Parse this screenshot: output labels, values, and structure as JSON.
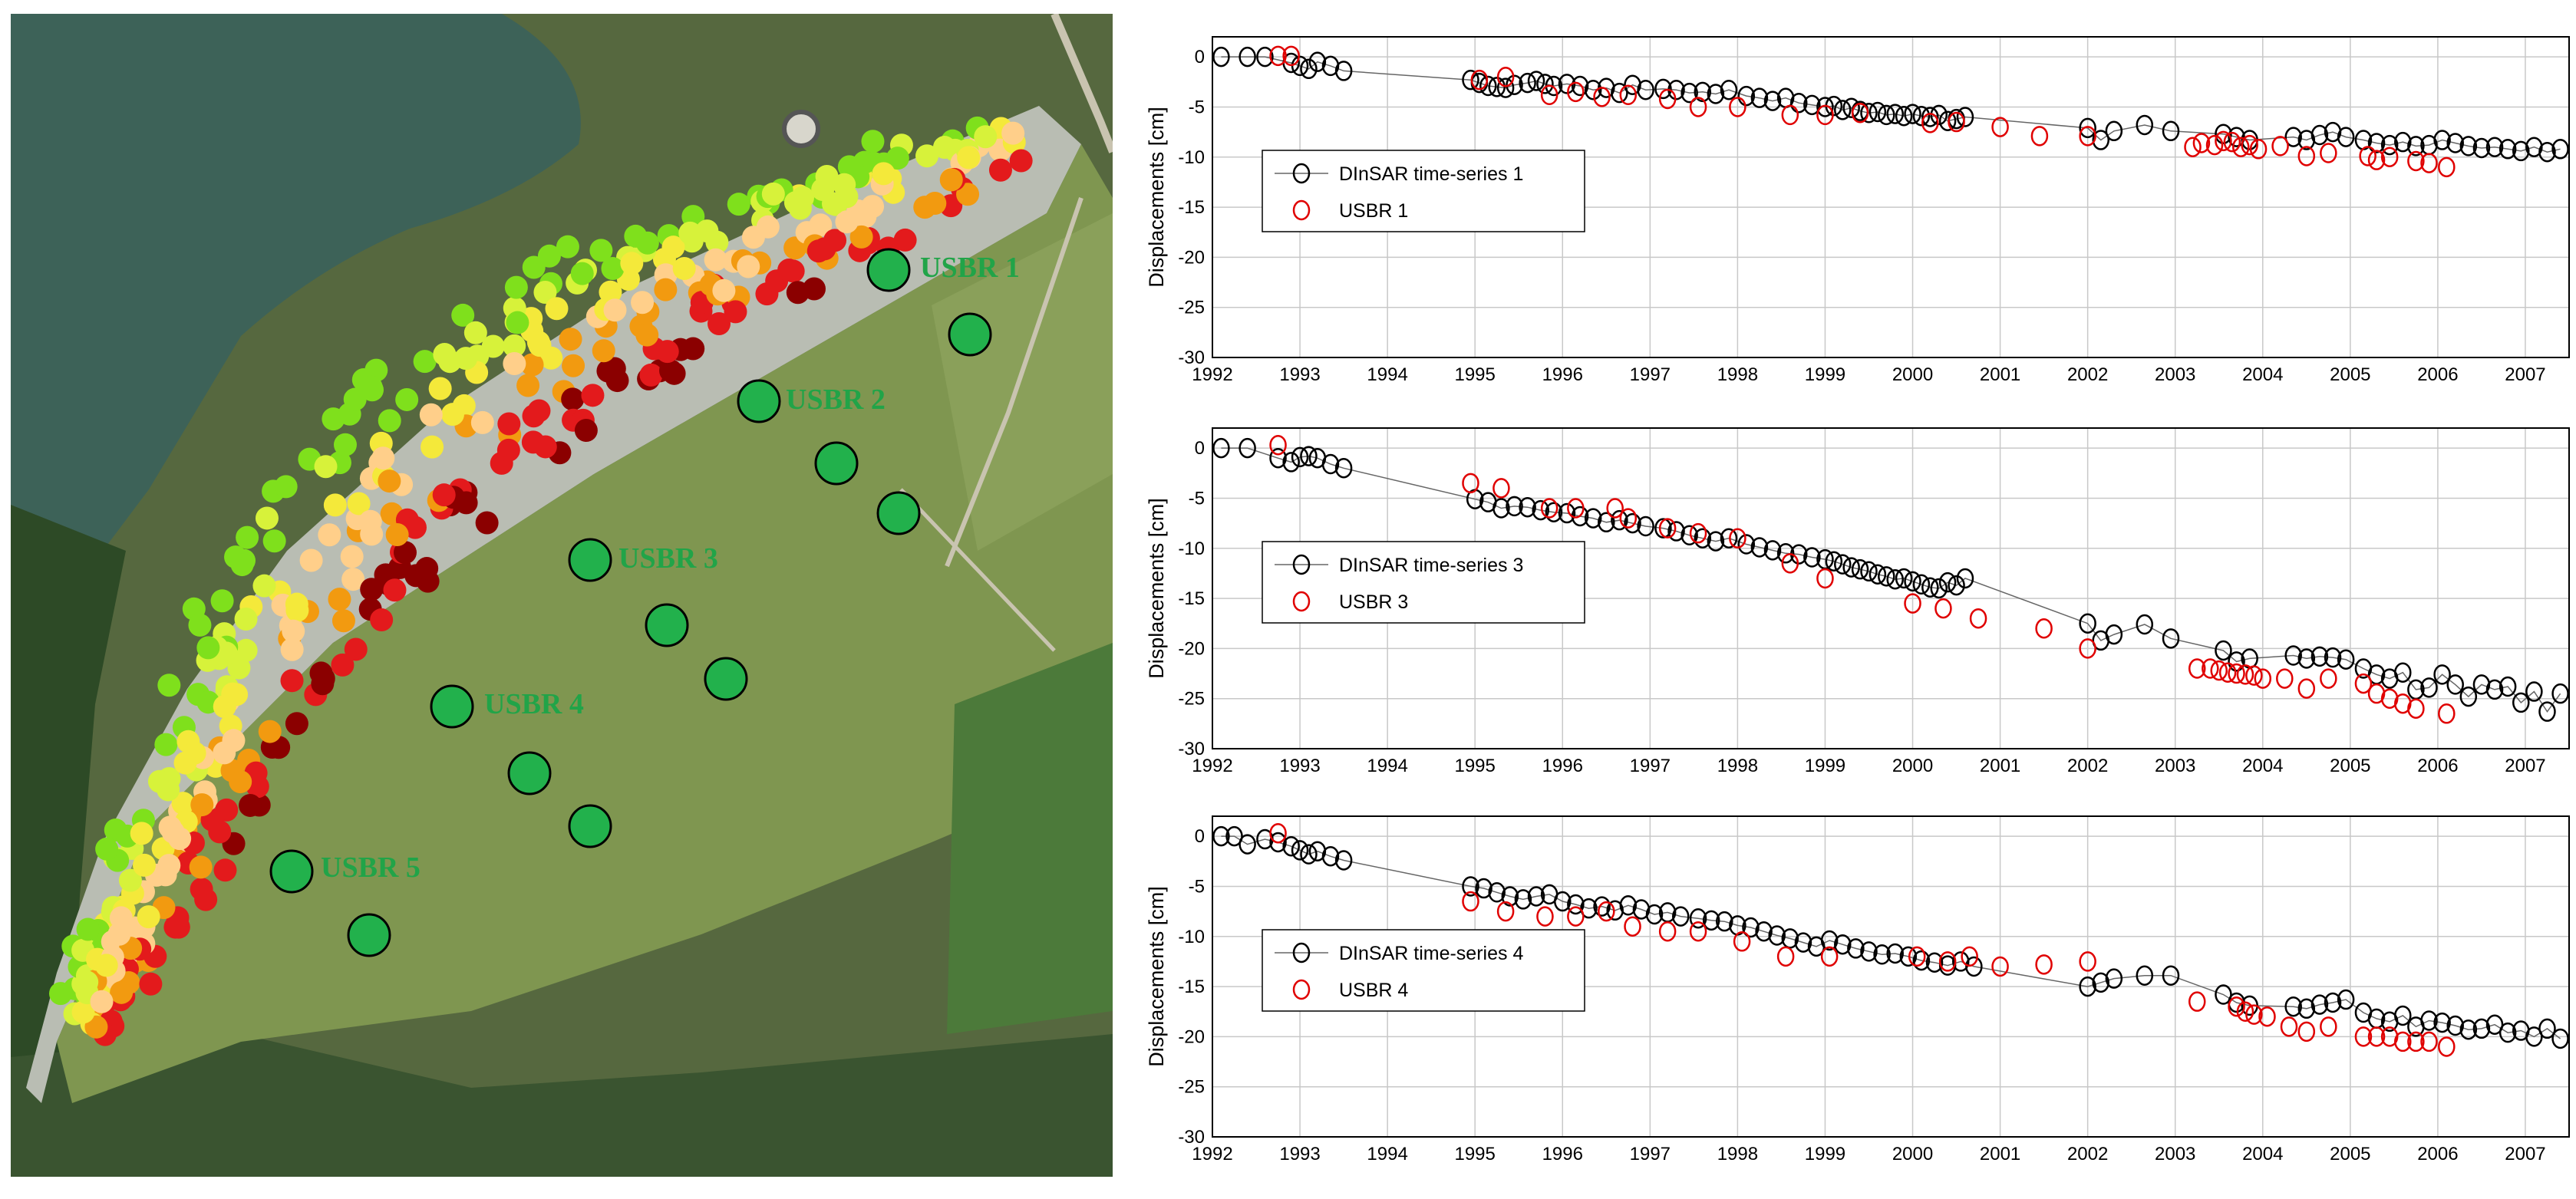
{
  "map": {
    "benchmark_labels": [
      "USBR 1",
      "USBR 2",
      "USBR 3",
      "USBR 4",
      "USBR 5"
    ],
    "benchmark_color": "#22b14c",
    "displacement_palette": [
      "#7fe01c",
      "#d7f23a",
      "#f4e93a",
      "#ffcf8a",
      "#f29a10",
      "#e31a1c",
      "#8b0000"
    ]
  },
  "chart_data": [
    {
      "type": "line",
      "ylabel": "Displacements [cm]",
      "xlim": [
        1992,
        2007.5
      ],
      "ylim": [
        -30,
        2
      ],
      "xticks": [
        "1992",
        "1993",
        "1994",
        "1995",
        "1996",
        "1997",
        "1998",
        "1999",
        "2000",
        "2001",
        "2002",
        "2003",
        "2004",
        "2005",
        "2006",
        "2007"
      ],
      "yticks": [
        "0",
        "-5",
        "-10",
        "-15",
        "-20",
        "-25",
        "-30"
      ],
      "grid": true,
      "legend_position": "middle-left",
      "series": [
        {
          "name": "DInSAR time-series 1",
          "color": "#000000",
          "marker": "circle",
          "line": true,
          "x": [
            1992.1,
            1992.4,
            1992.6,
            1992.9,
            1993.0,
            1993.1,
            1993.2,
            1993.35,
            1993.5,
            1994.95,
            1995.05,
            1995.15,
            1995.25,
            1995.35,
            1995.45,
            1995.6,
            1995.7,
            1995.8,
            1995.9,
            1996.05,
            1996.2,
            1996.35,
            1996.5,
            1996.65,
            1996.8,
            1996.95,
            1997.15,
            1997.3,
            1997.45,
            1997.6,
            1997.75,
            1997.9,
            1998.1,
            1998.25,
            1998.4,
            1998.55,
            1998.7,
            1998.85,
            1999.0,
            1999.1,
            1999.2,
            1999.3,
            1999.4,
            1999.5,
            1999.6,
            1999.7,
            1999.8,
            1999.9,
            2000.0,
            2000.1,
            2000.2,
            2000.3,
            2000.4,
            2000.5,
            2000.6,
            2002.0,
            2002.15,
            2002.3,
            2002.65,
            2002.95,
            2003.55,
            2003.7,
            2003.85,
            2004.35,
            2004.5,
            2004.65,
            2004.8,
            2004.95,
            2005.15,
            2005.3,
            2005.45,
            2005.6,
            2005.75,
            2005.9,
            2006.05,
            2006.2,
            2006.35,
            2006.5,
            2006.65,
            2006.8,
            2006.95,
            2007.1,
            2007.25,
            2007.4
          ],
          "y": [
            0,
            0,
            0,
            -0.6,
            -0.9,
            -1.2,
            -0.5,
            -0.9,
            -1.4,
            -2.3,
            -2.6,
            -2.9,
            -3.0,
            -3.1,
            -2.8,
            -2.6,
            -2.4,
            -2.7,
            -2.9,
            -2.7,
            -2.9,
            -3.3,
            -3.1,
            -3.6,
            -2.8,
            -3.3,
            -3.2,
            -3.3,
            -3.6,
            -3.5,
            -3.7,
            -3.3,
            -3.9,
            -4.1,
            -4.4,
            -4.1,
            -4.6,
            -4.8,
            -5.0,
            -4.9,
            -5.3,
            -5.1,
            -5.4,
            -5.6,
            -5.5,
            -5.8,
            -5.7,
            -5.9,
            -5.7,
            -5.9,
            -6.0,
            -5.8,
            -6.4,
            -6.2,
            -6.0,
            -7.1,
            -8.3,
            -7.4,
            -6.8,
            -7.4,
            -7.7,
            -8.0,
            -8.3,
            -8.0,
            -8.3,
            -7.8,
            -7.5,
            -8.0,
            -8.3,
            -8.6,
            -8.8,
            -8.5,
            -8.9,
            -8.8,
            -8.3,
            -8.6,
            -8.9,
            -9.1,
            -9.0,
            -9.2,
            -9.4,
            -9.0,
            -9.5,
            -9.2
          ]
        },
        {
          "name": "USBR 1",
          "color": "#e00000",
          "marker": "circle",
          "line": false,
          "x": [
            1992.75,
            1992.9,
            1995.05,
            1995.35,
            1995.85,
            1996.15,
            1996.45,
            1996.75,
            1997.2,
            1997.55,
            1998.0,
            1998.6,
            1999.0,
            1999.4,
            2000.2,
            2000.5,
            2001.0,
            2001.45,
            2002.0,
            2003.2,
            2003.3,
            2003.45,
            2003.55,
            2003.65,
            2003.75,
            2003.85,
            2003.95,
            2004.2,
            2004.5,
            2004.75,
            2005.2,
            2005.3,
            2005.45,
            2005.75,
            2005.9,
            2006.1
          ],
          "y": [
            0.1,
            0.1,
            -2.3,
            -2.0,
            -3.8,
            -3.5,
            -4.0,
            -3.8,
            -4.2,
            -5.0,
            -5.0,
            -5.8,
            -5.8,
            -5.6,
            -6.6,
            -6.5,
            -7.0,
            -7.9,
            -7.9,
            -9.0,
            -8.6,
            -8.8,
            -8.4,
            -8.5,
            -9.0,
            -8.8,
            -9.2,
            -8.9,
            -9.9,
            -9.6,
            -9.9,
            -10.3,
            -10.0,
            -10.4,
            -10.6,
            -11.0
          ]
        }
      ]
    },
    {
      "type": "line",
      "ylabel": "Displacements [cm]",
      "xlim": [
        1992,
        2007.5
      ],
      "ylim": [
        -30,
        2
      ],
      "xticks": [
        "1992",
        "1993",
        "1994",
        "1995",
        "1996",
        "1997",
        "1998",
        "1999",
        "2000",
        "2001",
        "2002",
        "2003",
        "2004",
        "2005",
        "2006",
        "2007"
      ],
      "yticks": [
        "0",
        "-5",
        "-10",
        "-15",
        "-20",
        "-25",
        "-30"
      ],
      "grid": true,
      "legend_position": "middle-left",
      "series": [
        {
          "name": "DInSAR time-series 3",
          "color": "#000000",
          "marker": "circle",
          "line": true,
          "x": [
            1992.1,
            1992.4,
            1992.75,
            1992.9,
            1993.0,
            1993.1,
            1993.2,
            1993.35,
            1993.5,
            1995.0,
            1995.15,
            1995.3,
            1995.45,
            1995.6,
            1995.75,
            1995.9,
            1996.05,
            1996.2,
            1996.35,
            1996.5,
            1996.65,
            1996.8,
            1996.95,
            1997.15,
            1997.3,
            1997.45,
            1997.6,
            1997.75,
            1997.9,
            1998.1,
            1998.25,
            1998.4,
            1998.55,
            1998.7,
            1998.85,
            1999.0,
            1999.1,
            1999.2,
            1999.3,
            1999.4,
            1999.5,
            1999.6,
            1999.7,
            1999.8,
            1999.9,
            2000.0,
            2000.1,
            2000.2,
            2000.3,
            2000.4,
            2000.5,
            2000.6,
            2002.0,
            2002.15,
            2002.3,
            2002.65,
            2002.95,
            2003.55,
            2003.7,
            2003.85,
            2004.35,
            2004.5,
            2004.65,
            2004.8,
            2004.95,
            2005.15,
            2005.3,
            2005.45,
            2005.6,
            2005.75,
            2005.9,
            2006.05,
            2006.2,
            2006.35,
            2006.5,
            2006.65,
            2006.8,
            2006.95,
            2007.1,
            2007.25,
            2007.4
          ],
          "y": [
            0,
            0,
            -1.0,
            -1.4,
            -0.9,
            -0.8,
            -1.0,
            -1.6,
            -2.0,
            -5.1,
            -5.4,
            -6.0,
            -5.8,
            -5.9,
            -6.2,
            -6.4,
            -6.5,
            -6.8,
            -7.0,
            -7.4,
            -7.2,
            -7.5,
            -7.8,
            -8.0,
            -8.3,
            -8.7,
            -9.0,
            -9.3,
            -9.0,
            -9.6,
            -9.9,
            -10.2,
            -10.5,
            -10.6,
            -10.9,
            -11.1,
            -11.3,
            -11.6,
            -11.9,
            -12.1,
            -12.3,
            -12.6,
            -12.8,
            -13.1,
            -13.0,
            -13.3,
            -13.6,
            -13.9,
            -14.0,
            -13.4,
            -13.7,
            -13.0,
            -17.5,
            -19.2,
            -18.6,
            -17.6,
            -19.0,
            -20.2,
            -21.3,
            -21.0,
            -20.7,
            -21.0,
            -20.8,
            -20.9,
            -21.1,
            -22.0,
            -22.6,
            -23.0,
            -22.4,
            -24.1,
            -23.9,
            -22.6,
            -23.6,
            -24.8,
            -23.6,
            -24.1,
            -23.8,
            -25.4,
            -24.3,
            -26.3,
            -24.5
          ]
        },
        {
          "name": "USBR 3",
          "color": "#e00000",
          "marker": "circle",
          "line": false,
          "x": [
            1992.75,
            1994.95,
            1995.3,
            1995.85,
            1996.15,
            1996.6,
            1996.75,
            1997.2,
            1997.55,
            1998.0,
            1998.6,
            1999.0,
            2000.0,
            2000.35,
            2000.75,
            2001.5,
            2002.0,
            2003.25,
            2003.4,
            2003.5,
            2003.6,
            2003.7,
            2003.8,
            2003.9,
            2004.0,
            2004.25,
            2004.5,
            2004.75,
            2005.15,
            2005.3,
            2005.45,
            2005.6,
            2005.75,
            2006.1
          ],
          "y": [
            0.3,
            -3.5,
            -4.0,
            -6.0,
            -6.0,
            -6.0,
            -7.0,
            -8.0,
            -8.5,
            -9.0,
            -11.5,
            -13.0,
            -15.5,
            -16.0,
            -17.0,
            -18.0,
            -20.0,
            -22.0,
            -22.0,
            -22.2,
            -22.4,
            -22.5,
            -22.6,
            -22.7,
            -23.0,
            -23.0,
            -24.0,
            -23.0,
            -23.5,
            -24.5,
            -25.0,
            -25.5,
            -26.0,
            -26.5
          ]
        }
      ]
    },
    {
      "type": "line",
      "ylabel": "Displacements [cm]",
      "xlim": [
        1992,
        2007.5
      ],
      "ylim": [
        -30,
        2
      ],
      "xticks": [
        "1992",
        "1993",
        "1994",
        "1995",
        "1996",
        "1997",
        "1998",
        "1999",
        "2000",
        "2001",
        "2002",
        "2003",
        "2004",
        "2005",
        "2006",
        "2007"
      ],
      "yticks": [
        "0",
        "-5",
        "-10",
        "-15",
        "-20",
        "-25",
        "-30"
      ],
      "grid": true,
      "legend_position": "middle-left",
      "series": [
        {
          "name": "DInSAR time-series 4",
          "color": "#000000",
          "marker": "circle",
          "line": true,
          "x": [
            1992.1,
            1992.25,
            1992.4,
            1992.6,
            1992.75,
            1992.9,
            1993.0,
            1993.1,
            1993.2,
            1993.35,
            1993.5,
            1994.95,
            1995.1,
            1995.25,
            1995.4,
            1995.55,
            1995.7,
            1995.85,
            1996.0,
            1996.15,
            1996.3,
            1996.45,
            1996.6,
            1996.75,
            1996.9,
            1997.05,
            1997.2,
            1997.35,
            1997.55,
            1997.7,
            1997.85,
            1998.0,
            1998.15,
            1998.3,
            1998.45,
            1998.6,
            1998.75,
            1998.9,
            1999.05,
            1999.2,
            1999.35,
            1999.5,
            1999.65,
            1999.8,
            1999.95,
            2000.1,
            2000.25,
            2000.4,
            2000.55,
            2000.7,
            2002.0,
            2002.15,
            2002.3,
            2002.65,
            2002.95,
            2003.55,
            2003.7,
            2003.85,
            2004.35,
            2004.5,
            2004.65,
            2004.8,
            2004.95,
            2005.15,
            2005.3,
            2005.45,
            2005.6,
            2005.75,
            2005.9,
            2006.05,
            2006.2,
            2006.35,
            2006.5,
            2006.65,
            2006.8,
            2006.95,
            2007.1,
            2007.25,
            2007.4
          ],
          "y": [
            0,
            0,
            -0.8,
            -0.3,
            -0.6,
            -1.0,
            -1.4,
            -1.8,
            -1.5,
            -2.0,
            -2.4,
            -5.0,
            -5.2,
            -5.6,
            -6.0,
            -6.3,
            -6.0,
            -5.8,
            -6.5,
            -6.8,
            -7.2,
            -7.0,
            -7.4,
            -6.9,
            -7.3,
            -7.8,
            -7.6,
            -8.0,
            -8.2,
            -8.4,
            -8.5,
            -8.9,
            -9.1,
            -9.5,
            -9.9,
            -10.2,
            -10.6,
            -11.0,
            -10.4,
            -10.8,
            -11.2,
            -11.5,
            -11.8,
            -11.7,
            -12.0,
            -12.4,
            -12.6,
            -12.9,
            -12.5,
            -13.0,
            -15.0,
            -14.6,
            -14.2,
            -13.9,
            -13.9,
            -15.8,
            -16.6,
            -16.9,
            -17.0,
            -17.2,
            -16.8,
            -16.6,
            -16.3,
            -17.6,
            -18.2,
            -18.5,
            -17.9,
            -19.0,
            -18.4,
            -18.6,
            -18.9,
            -19.3,
            -19.2,
            -18.8,
            -19.6,
            -19.4,
            -20.0,
            -19.2,
            -20.2
          ]
        },
        {
          "name": "USBR 4",
          "color": "#e00000",
          "marker": "circle",
          "line": false,
          "x": [
            1992.75,
            1994.95,
            1995.35,
            1995.8,
            1996.15,
            1996.5,
            1996.8,
            1997.2,
            1997.55,
            1998.05,
            1998.55,
            1999.05,
            2000.05,
            2000.4,
            2000.65,
            2001.0,
            2001.5,
            2002.0,
            2003.25,
            2003.7,
            2003.8,
            2003.9,
            2004.05,
            2004.3,
            2004.5,
            2004.75,
            2005.15,
            2005.3,
            2005.45,
            2005.6,
            2005.75,
            2005.9,
            2006.1
          ],
          "y": [
            0.3,
            -6.5,
            -7.5,
            -8.0,
            -8.0,
            -7.5,
            -9.0,
            -9.5,
            -9.5,
            -10.5,
            -12.0,
            -12.0,
            -12.0,
            -12.5,
            -12.0,
            -13.0,
            -12.8,
            -12.5,
            -16.5,
            -17.0,
            -17.5,
            -17.8,
            -18.0,
            -19.0,
            -19.5,
            -19.0,
            -20.0,
            -20.0,
            -20.0,
            -20.5,
            -20.5,
            -20.5,
            -21.0
          ]
        }
      ]
    }
  ]
}
